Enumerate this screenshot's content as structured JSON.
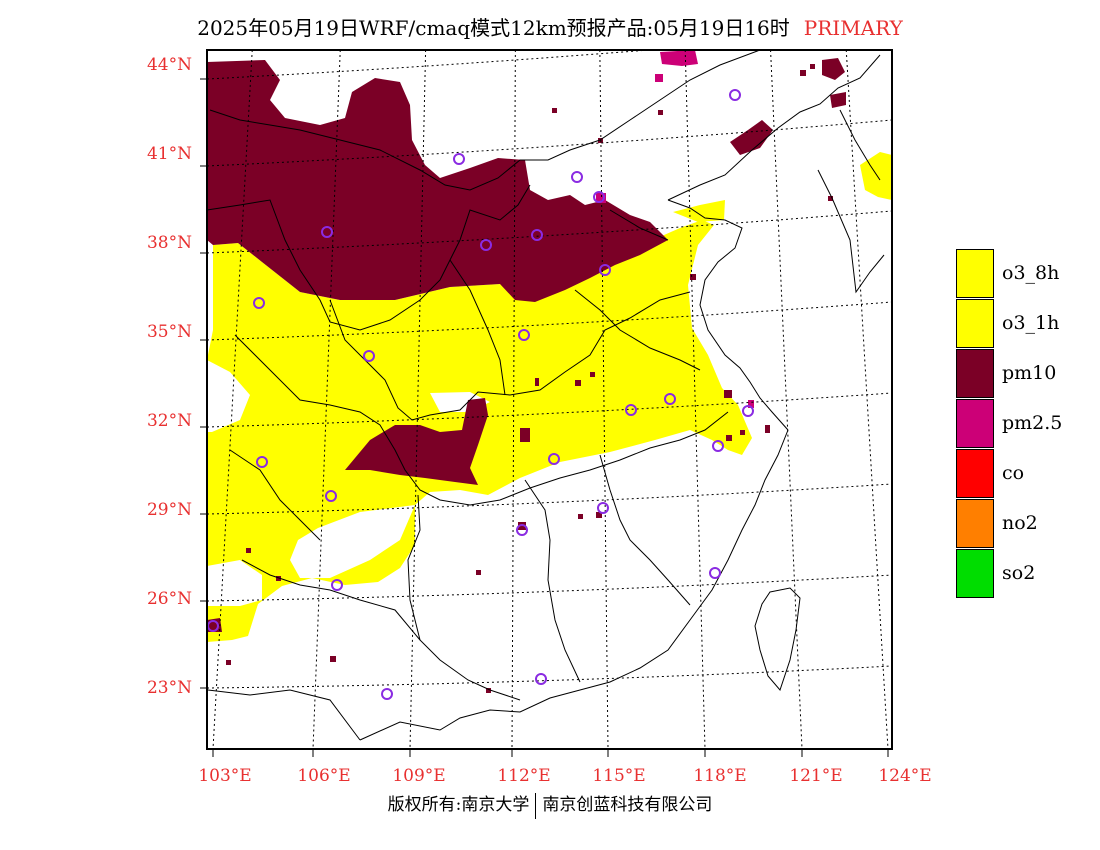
{
  "title": {
    "text": "2025年05月19日WRF/cmaq模式12km预报产品:05月19日16时",
    "tag": "PRIMARY"
  },
  "map": {
    "lat_labels": [
      "44°N",
      "41°N",
      "38°N",
      "35°N",
      "32°N",
      "29°N",
      "26°N",
      "23°N"
    ],
    "lon_labels": [
      "103°E",
      "106°E",
      "109°E",
      "112°E",
      "115°E",
      "118°E",
      "121°E",
      "124°E"
    ]
  },
  "legend": {
    "items": [
      {
        "label": "o3_8h",
        "color": "#ffff00"
      },
      {
        "label": "o3_1h",
        "color": "#ffff00"
      },
      {
        "label": "pm10",
        "color": "#7b0026"
      },
      {
        "label": "pm2.5",
        "color": "#cc0077"
      },
      {
        "label": "co",
        "color": "#ff0000"
      },
      {
        "label": "no2",
        "color": "#ff7f00"
      },
      {
        "label": "so2",
        "color": "#00dd00"
      }
    ]
  },
  "colors": {
    "o3": "#ffff00",
    "pm10": "#7b0026",
    "pm25": "#cc0077",
    "station": "#8a2be2",
    "label": "#e83030"
  },
  "footer": {
    "left": "版权所有:南京大学",
    "right": "南京创蓝科技有限公司"
  }
}
